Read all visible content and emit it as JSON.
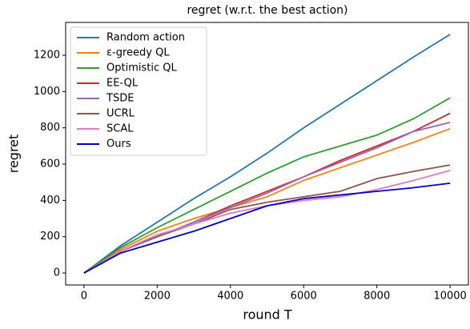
{
  "chart_data": {
    "type": "line",
    "title": "regret (w.r.t. the best action)",
    "xlabel": "round T",
    "ylabel": "regret",
    "x": [
      0,
      1000,
      2000,
      3000,
      4000,
      5000,
      6000,
      7000,
      8000,
      9000,
      10000
    ],
    "series": [
      {
        "name": "Random action",
        "color": "#1f77b4",
        "values": [
          0,
          150,
          280,
          410,
          530,
          660,
          800,
          930,
          1060,
          1190,
          1315
        ]
      },
      {
        "name": "ε-greedy QL",
        "color": "#ff7f0e",
        "values": [
          0,
          130,
          230,
          300,
          360,
          420,
          510,
          580,
          650,
          720,
          795
        ]
      },
      {
        "name": "Optimistic QL",
        "color": "#2ca02c",
        "values": [
          0,
          140,
          250,
          350,
          450,
          550,
          640,
          700,
          760,
          850,
          965
        ]
      },
      {
        "name": "EE-QL",
        "color": "#d62728",
        "values": [
          0,
          120,
          200,
          280,
          370,
          450,
          530,
          620,
          700,
          780,
          880
        ]
      },
      {
        "name": "TSDE",
        "color": "#9467bd",
        "values": [
          0,
          120,
          200,
          280,
          360,
          440,
          530,
          610,
          690,
          780,
          830
        ]
      },
      {
        "name": "UCRL",
        "color": "#8c564b",
        "values": [
          0,
          120,
          200,
          270,
          350,
          390,
          420,
          450,
          520,
          560,
          595
        ]
      },
      {
        "name": "SCAL",
        "color": "#e377c2",
        "values": [
          0,
          120,
          210,
          270,
          330,
          370,
          400,
          420,
          460,
          510,
          565
        ]
      },
      {
        "name": "Ours",
        "color": "#0000cd",
        "values": [
          0,
          110,
          170,
          230,
          300,
          370,
          410,
          430,
          450,
          470,
          495
        ]
      }
    ],
    "xlim": [
      -500,
      10500
    ],
    "xticks": [
      0,
      2000,
      4000,
      6000,
      8000,
      10000
    ],
    "ylim": [
      -66,
      1381
    ],
    "yticks": [
      0,
      200,
      400,
      600,
      800,
      1000,
      1200
    ],
    "legend": "upper left",
    "grid": false
  }
}
